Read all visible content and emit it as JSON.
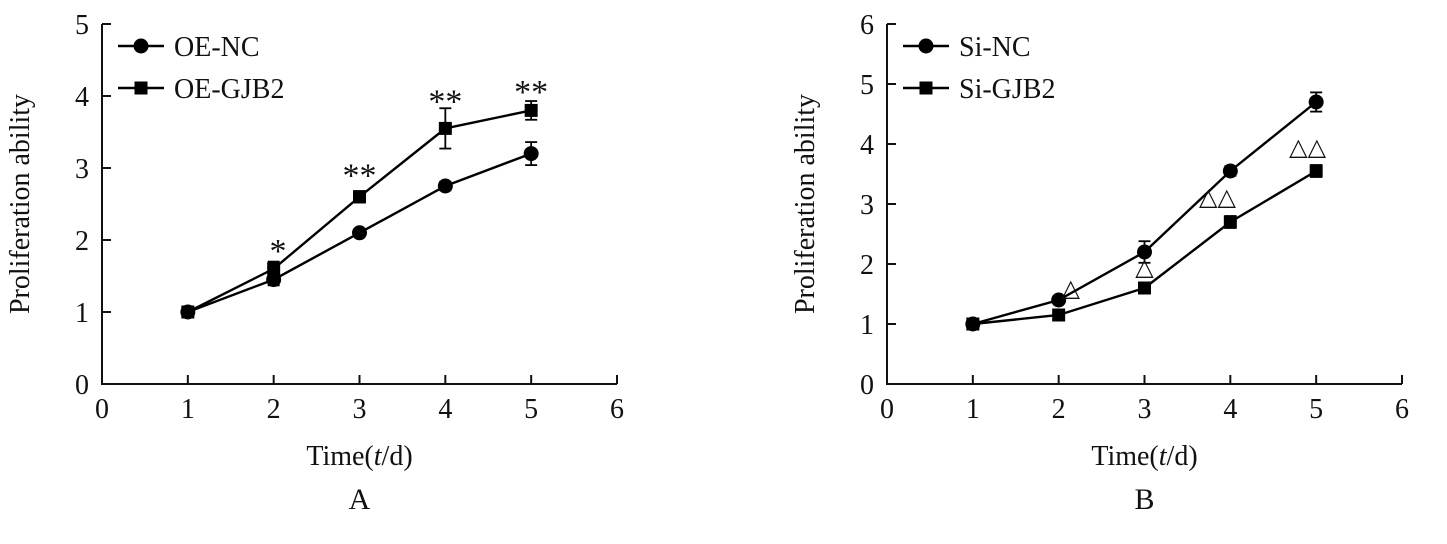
{
  "page": {
    "background": "#ffffff",
    "ink_color": "#111111"
  },
  "chart_data": [
    {
      "type": "line",
      "panel_label": "A",
      "title": "",
      "xlabel": "Time(t/d)",
      "ylabel": "Proliferation ability",
      "xlim": [
        0,
        6
      ],
      "ylim": [
        0,
        5
      ],
      "xticks": [
        0,
        1,
        2,
        3,
        4,
        5,
        6
      ],
      "yticks": [
        0,
        1,
        2,
        3,
        4,
        5
      ],
      "grid": false,
      "legend_position": "top-left",
      "x": [
        1,
        2,
        3,
        4,
        5
      ],
      "series": [
        {
          "name": "OE-NC",
          "marker": "circle",
          "color": "#000000",
          "values": [
            1.0,
            1.45,
            2.1,
            2.75,
            3.2
          ],
          "errors": [
            0.05,
            0.08,
            0.05,
            0.06,
            0.16
          ]
        },
        {
          "name": "OE-GJB2",
          "marker": "square",
          "color": "#000000",
          "values": [
            1.0,
            1.6,
            2.6,
            3.55,
            3.8
          ],
          "errors": [
            0.05,
            0.1,
            0.08,
            0.28,
            0.13
          ]
        }
      ],
      "annotations": [
        {
          "x": 2.05,
          "y": 1.97,
          "text": "*"
        },
        {
          "x": 3.0,
          "y": 3.02,
          "text": "**"
        },
        {
          "x": 4.0,
          "y": 4.05,
          "text": "**"
        },
        {
          "x": 5.0,
          "y": 4.18,
          "text": "**"
        }
      ]
    },
    {
      "type": "line",
      "panel_label": "B",
      "title": "",
      "xlabel": "Time(t/d)",
      "ylabel": "Proliferation ability",
      "xlim": [
        0,
        6
      ],
      "ylim": [
        0,
        6
      ],
      "xticks": [
        0,
        1,
        2,
        3,
        4,
        5,
        6
      ],
      "yticks": [
        0,
        1,
        2,
        3,
        4,
        5,
        6
      ],
      "grid": false,
      "legend_position": "top-left",
      "x": [
        1,
        2,
        3,
        4,
        5
      ],
      "series": [
        {
          "name": "Si-NC",
          "marker": "circle",
          "color": "#000000",
          "values": [
            1.0,
            1.4,
            2.2,
            3.55,
            4.7
          ],
          "errors": [
            0.04,
            0.06,
            0.18,
            0.08,
            0.16
          ]
        },
        {
          "name": "Si-GJB2",
          "marker": "square",
          "color": "#000000",
          "values": [
            1.0,
            1.15,
            1.6,
            2.7,
            3.55
          ],
          "errors": [
            0.04,
            0.05,
            0.08,
            0.1,
            0.1
          ]
        }
      ],
      "annotations": [
        {
          "x": 2.14,
          "y": 1.6,
          "text": "△"
        },
        {
          "x": 3.0,
          "y": 1.95,
          "text": "△"
        },
        {
          "x": 3.85,
          "y": 3.12,
          "text": "△△"
        },
        {
          "x": 4.9,
          "y": 3.95,
          "text": "△△"
        }
      ]
    }
  ]
}
